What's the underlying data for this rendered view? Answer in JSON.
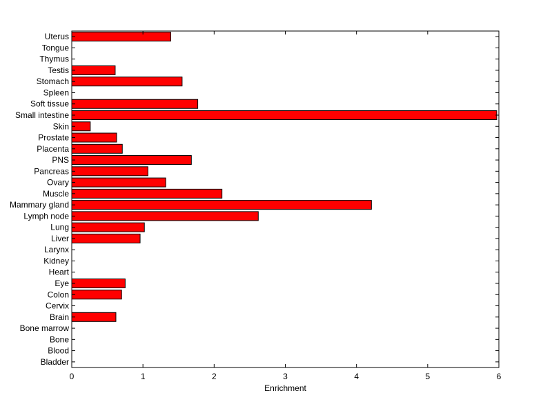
{
  "chart_data": {
    "type": "bar",
    "orientation": "horizontal",
    "xlabel": "Enrichment",
    "ylabel": "",
    "title": "",
    "xlim": [
      0,
      6
    ],
    "xticks": [
      0,
      1,
      2,
      3,
      4,
      5,
      6
    ],
    "grid": false,
    "bar_color": "#ff0000",
    "categories": [
      "Uterus",
      "Tongue",
      "Thymus",
      "Testis",
      "Stomach",
      "Spleen",
      "Soft tissue",
      "Small intestine",
      "Skin",
      "Prostate",
      "Placenta",
      "PNS",
      "Pancreas",
      "Ovary",
      "Muscle",
      "Mammary gland",
      "Lymph node",
      "Lung",
      "Liver",
      "Larynx",
      "Kidney",
      "Heart",
      "Eye",
      "Colon",
      "Cervix",
      "Brain",
      "Bone marrow",
      "Bone",
      "Blood",
      "Bladder"
    ],
    "values": [
      1.39,
      0,
      0,
      0.61,
      1.55,
      0,
      1.77,
      5.97,
      0.26,
      0.63,
      0.71,
      1.68,
      1.07,
      1.32,
      2.11,
      4.21,
      2.62,
      1.02,
      0.96,
      0,
      0,
      0,
      0.75,
      0.7,
      0,
      0.62,
      0,
      0,
      0,
      0
    ]
  }
}
